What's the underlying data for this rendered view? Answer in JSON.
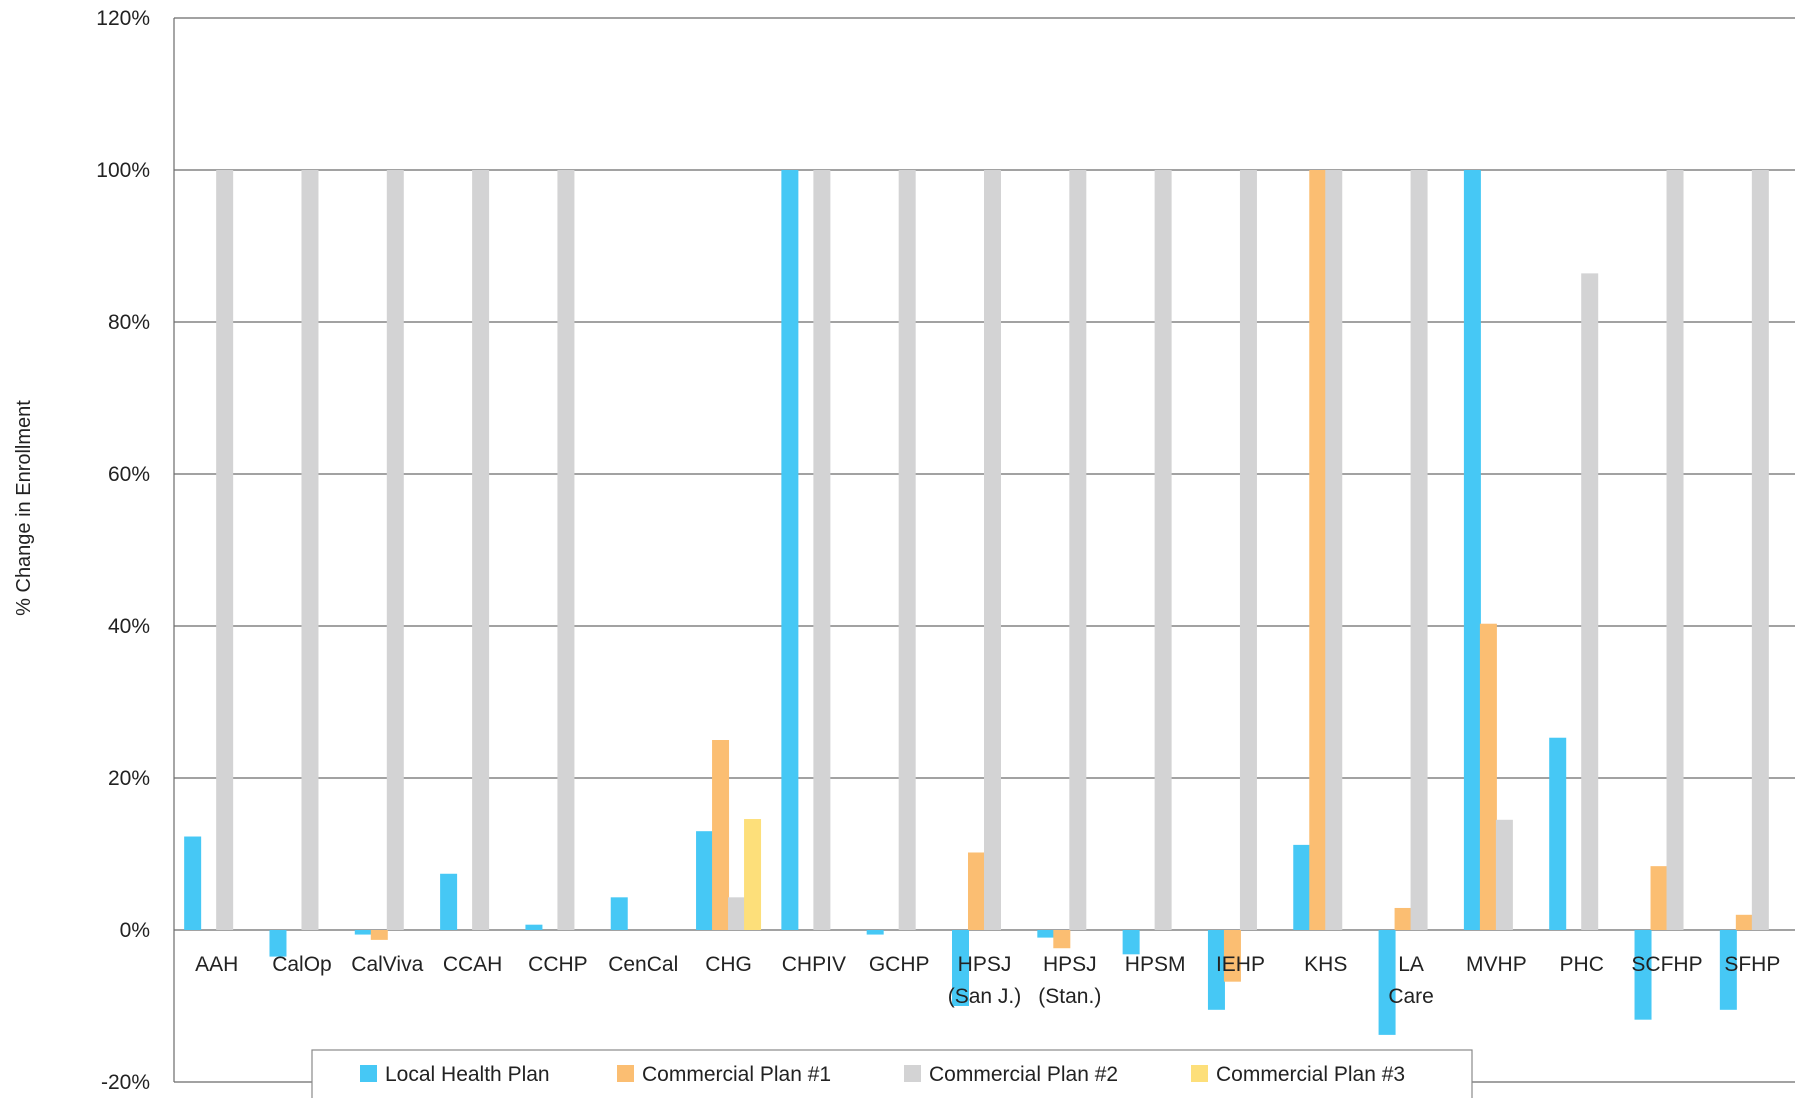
{
  "chart_data": {
    "type": "bar",
    "title": "",
    "xlabel": "",
    "ylabel": "% Change in Enrollment",
    "ylim": [
      -20,
      120
    ],
    "yticks": [
      -20,
      0,
      20,
      40,
      60,
      80,
      100,
      120
    ],
    "ytick_labels": [
      "-20%",
      "0%",
      "20%",
      "40%",
      "60%",
      "80%",
      "100%",
      "120%"
    ],
    "grid": "horizontal",
    "legend_position": "bottom",
    "categories": [
      [
        "AAH"
      ],
      [
        "CalOp"
      ],
      [
        "CalViva"
      ],
      [
        "CCAH"
      ],
      [
        "CCHP"
      ],
      [
        "CenCal"
      ],
      [
        "CHG"
      ],
      [
        "CHPIV"
      ],
      [
        "GCHP"
      ],
      [
        "HPSJ",
        "(San J.)"
      ],
      [
        "HPSJ",
        "(Stan.)"
      ],
      [
        "HPSM"
      ],
      [
        "IEHP"
      ],
      [
        "KHS"
      ],
      [
        "LA",
        "Care"
      ],
      [
        "MVHP"
      ],
      [
        "PHC"
      ],
      [
        "SCFHP"
      ],
      [
        "SFHP"
      ]
    ],
    "series": [
      {
        "name": "Local Health Plan",
        "color": "#46C8F5",
        "values": [
          12.3,
          -3.5,
          -0.6,
          7.4,
          0.7,
          4.3,
          13.0,
          100,
          -0.6,
          -10,
          -1.0,
          -3.2,
          -10.5,
          11.2,
          -13.8,
          100,
          25.3,
          -11.8,
          -10.5
        ]
      },
      {
        "name": "Commercial Plan #1",
        "color": "#FBBE72",
        "values": [
          null,
          null,
          -1.3,
          null,
          null,
          null,
          25.0,
          null,
          null,
          10.2,
          -2.4,
          null,
          -6.8,
          100,
          2.9,
          40.3,
          null,
          8.4,
          2.0
        ]
      },
      {
        "name": "Commercial Plan #2",
        "color": "#D3D3D4",
        "values": [
          100,
          100,
          100,
          100,
          100,
          null,
          4.3,
          100,
          100,
          100,
          100,
          100,
          100,
          100,
          100,
          14.5,
          86.4,
          100,
          100
        ]
      },
      {
        "name": "Commercial Plan #3",
        "color": "#FDDF7A",
        "values": [
          null,
          null,
          null,
          null,
          null,
          null,
          14.6,
          null,
          null,
          null,
          null,
          null,
          null,
          null,
          null,
          null,
          null,
          null,
          null
        ]
      }
    ]
  }
}
